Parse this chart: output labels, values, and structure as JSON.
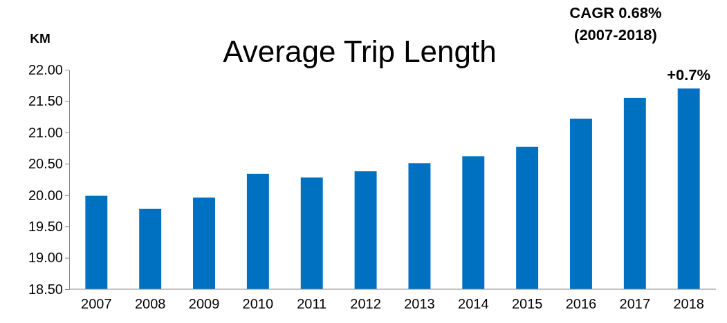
{
  "chart_data": {
    "type": "bar",
    "title": "Average Trip Length",
    "ylabel": "KM",
    "categories": [
      "2007",
      "2008",
      "2009",
      "2010",
      "2011",
      "2012",
      "2013",
      "2014",
      "2015",
      "2016",
      "2017",
      "2018"
    ],
    "values": [
      19.99,
      19.78,
      19.96,
      20.34,
      20.28,
      20.38,
      20.51,
      20.62,
      20.77,
      21.22,
      21.55,
      21.7
    ],
    "color": "#0070c0",
    "ylim": [
      18.5,
      22
    ],
    "yticks": [
      {
        "value": 18.5,
        "label": "18.50"
      },
      {
        "value": 19,
        "label": "19.00"
      },
      {
        "value": 19.5,
        "label": "19.50"
      },
      {
        "value": 20,
        "label": "20.00"
      },
      {
        "value": 20.5,
        "label": "20.50"
      },
      {
        "value": 21,
        "label": "21.00"
      },
      {
        "value": 21.5,
        "label": "21.50"
      },
      {
        "value": 22,
        "label": "22.00"
      }
    ],
    "grid": false,
    "annotations": [
      "CAGR 0.68%",
      "(2007-2018)",
      {
        "text": "+0.7%",
        "x": "2018",
        "y": 21.7
      }
    ]
  }
}
